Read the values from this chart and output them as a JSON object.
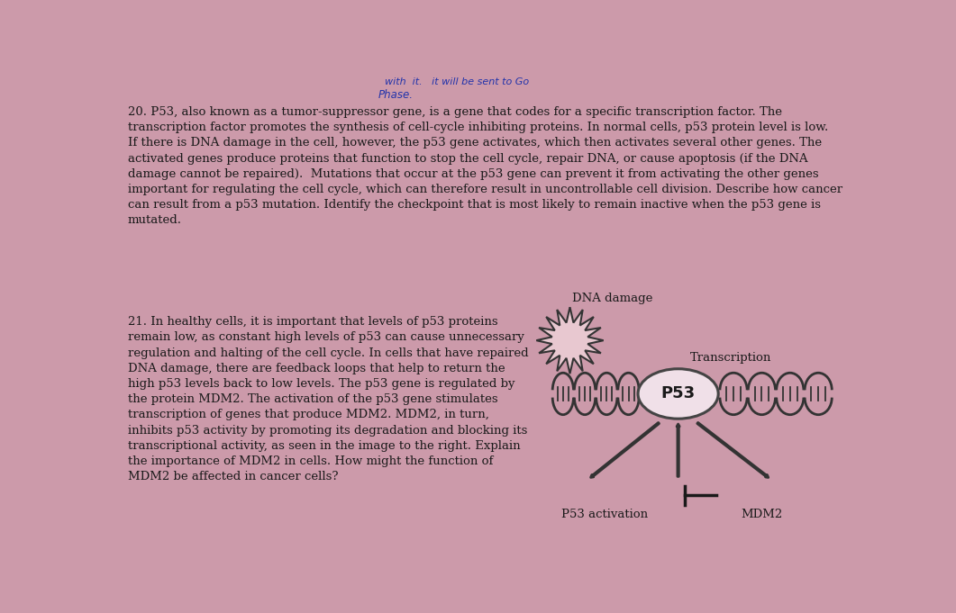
{
  "background_color": "#cc9aaa",
  "text_color": "#1a1a1a",
  "handwriting_color": "#2233aa",
  "q20_text": "20. P53, also known as a tumor-suppressor gene, is a gene that codes for a specific transcription factor. The\ntranscription factor promotes the synthesis of cell-cycle inhibiting proteins. In normal cells, p53 protein level is low.\nIf there is DNA damage in the cell, however, the p53 gene activates, which then activates several other genes. The\nactivated genes produce proteins that function to stop the cell cycle, repair DNA, or cause apoptosis (if the DNA\ndamage cannot be repaired).  Mutations that occur at the p53 gene can prevent it from activating the other genes\nimportant for regulating the cell cycle, which can therefore result in uncontrollable cell division. Describe how cancer\ncan result from a p53 mutation. Identify the checkpoint that is most likely to remain inactive when the p53 gene is\nmutated.",
  "q21_text": "21. In healthy cells, it is important that levels of p53 proteins\nremain low, as constant high levels of p53 can cause unnecessary\nregulation and halting of the cell cycle. In cells that have repaired\nDNA damage, there are feedback loops that help to return the\nhigh p53 levels back to low levels. The p53 gene is regulated by\nthe protein MDM2. The activation of the p53 gene stimulates\ntranscription of genes that produce MDM2. MDM2, in turn,\ninhibits p53 activity by promoting its degradation and blocking its\ntranscriptional activity, as seen in the image to the right. Explain\nthe importance of MDM2 in cells. How might the function of\nMDM2 be affected in cancer cells?",
  "handwriting_top": "with  it.   it will be sent to Go",
  "handwriting_mid": "Phase.",
  "dna_color": "#333333",
  "p53_label": "P53",
  "transcription_label": "Transcription",
  "dna_damage_label": "DNA damage",
  "p53_activation_label": "P53 activation",
  "mdm2_label": "MDM2",
  "arrow_color": "#333333",
  "spike_fill": "#e8c8d0",
  "spike_outline": "#333333",
  "p53_fill": "#f0e0e8",
  "p53_outline": "#444444"
}
